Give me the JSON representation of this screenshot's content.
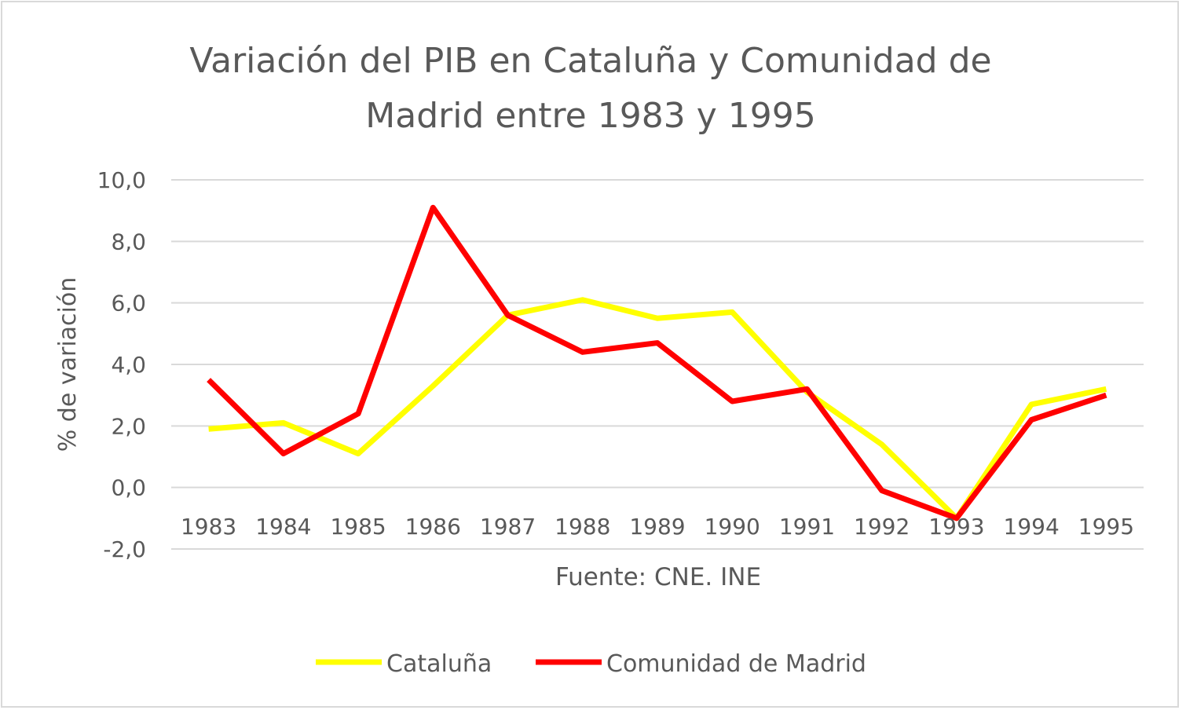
{
  "chart_data": {
    "type": "line",
    "title": "Variación del PIB en Cataluña y Comunidad de Madrid entre 1983 y 1995",
    "title_lines": [
      "Variación del PIB en Cataluña y Comunidad de",
      "Madrid entre 1983 y 1995"
    ],
    "xlabel": "Fuente: CNE. INE",
    "ylabel": "% de variación",
    "categories": [
      "1983",
      "1984",
      "1985",
      "1986",
      "1987",
      "1988",
      "1989",
      "1990",
      "1991",
      "1992",
      "1993",
      "1994",
      "1995"
    ],
    "ylim": [
      -2,
      10
    ],
    "yticks": [
      "-2,0",
      "0,0",
      "2,0",
      "4,0",
      "6,0",
      "8,0",
      "10,0"
    ],
    "grid": true,
    "legend": "bottom",
    "series": [
      {
        "name": "Cataluña",
        "color": "#ffff00",
        "values": [
          1.9,
          2.1,
          1.1,
          3.3,
          5.6,
          6.1,
          5.5,
          5.7,
          3.1,
          1.4,
          -1.0,
          2.7,
          3.2
        ]
      },
      {
        "name": "Comunidad de Madrid",
        "color": "#ff0000",
        "values": [
          3.5,
          1.1,
          2.4,
          9.1,
          5.6,
          4.4,
          4.7,
          2.8,
          3.2,
          -0.1,
          -1.0,
          2.2,
          3.0
        ]
      }
    ]
  }
}
